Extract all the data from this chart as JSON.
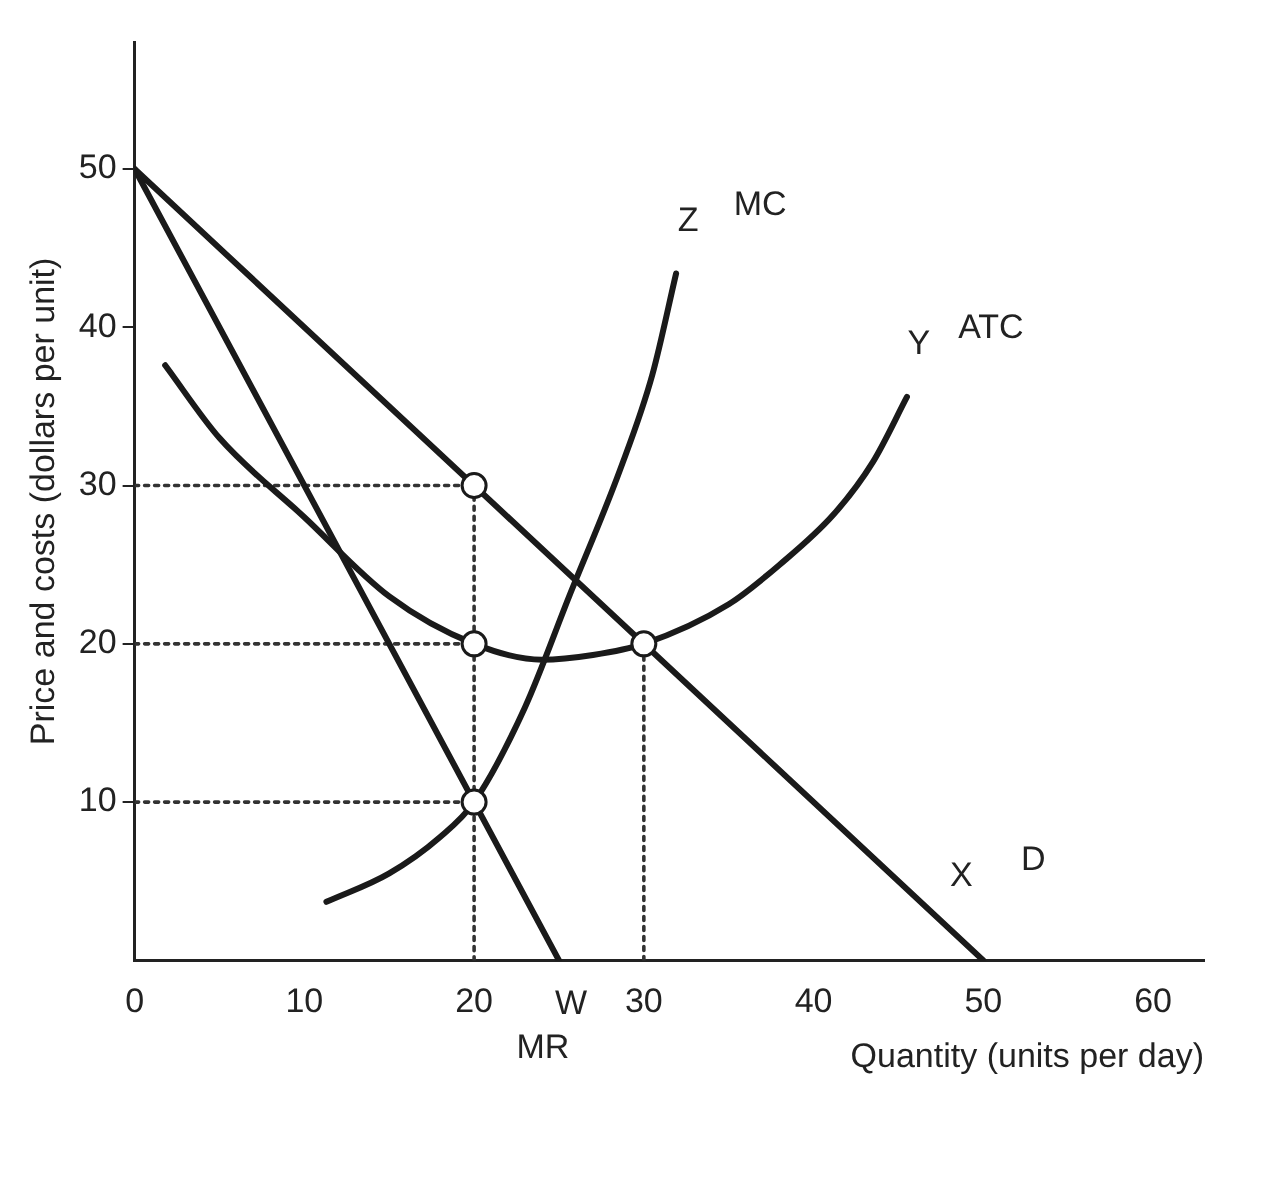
{
  "chart_data": {
    "type": "line",
    "xlabel": "Quantity (units per day)",
    "ylabel": "Price and costs (dollars per unit)",
    "xlim": [
      0,
      63
    ],
    "ylim": [
      0,
      58
    ],
    "xticks": [
      0,
      10,
      20,
      30,
      40,
      50,
      60
    ],
    "yticks": [
      10,
      20,
      30,
      40,
      50
    ],
    "grid": false,
    "legend": false,
    "marker": "none",
    "line_style": "solid",
    "series": [
      {
        "color": "#1a1a1a",
        "x": [
          0,
          50
        ],
        "values": [
          50,
          0
        ]
      },
      {
        "color": "#1a1a1a",
        "x": [
          0,
          25
        ],
        "values": [
          50,
          0
        ]
      },
      {
        "color": "#1a1a1a",
        "x": [
          11.3,
          15,
          18,
          20,
          23,
          25.6,
          28.6,
          30.5,
          31.9
        ],
        "values": [
          3.7,
          5.5,
          7.8,
          10,
          16,
          23,
          31,
          37,
          43.4
        ]
      },
      {
        "color": "#1a1a1a",
        "x": [
          1.8,
          5,
          10,
          15,
          20,
          24,
          27,
          30,
          35,
          38,
          41.2,
          43.5,
          45.5
        ],
        "values": [
          37.6,
          33,
          28,
          23,
          20,
          19,
          19.3,
          20,
          22.5,
          25,
          28.2,
          31.5,
          35.6
        ]
      },
      {
        "line_style": "dotted",
        "color": "#333333",
        "x": [
          0,
          20
        ],
        "values": [
          30,
          30
        ]
      },
      {
        "line_style": "dotted",
        "color": "#333333",
        "x": [
          0,
          20
        ],
        "values": [
          20,
          20
        ]
      },
      {
        "line_style": "dotted",
        "color": "#333333",
        "x": [
          0,
          20
        ],
        "values": [
          10,
          10
        ]
      },
      {
        "line_style": "dotted",
        "color": "#333333",
        "x": [
          20,
          20
        ],
        "values": [
          0,
          30
        ]
      },
      {
        "line_style": "dotted",
        "color": "#333333",
        "x": [
          30,
          30
        ],
        "values": [
          0,
          20
        ]
      },
      {
        "type": "scatter",
        "marker": "circle",
        "color": "#1a1a1a",
        "x": [
          20,
          20,
          30,
          20
        ],
        "values": [
          30,
          20,
          20,
          10
        ]
      }
    ],
    "annotations": [
      {
        "text": "Z",
        "x": 31.9,
        "y": 43.4
      },
      {
        "text": "Y",
        "x": 45.5,
        "y": 35.6
      },
      {
        "text": "X",
        "x": 48,
        "y": 2
      },
      {
        "text": "W",
        "x": 25,
        "y": 0
      },
      {
        "text": "MC",
        "x": 31.9,
        "y": 43.4
      },
      {
        "text": "ATC",
        "x": 45.5,
        "y": 35.6
      },
      {
        "text": "D",
        "x": 48,
        "y": 2
      },
      {
        "text": "MR",
        "x": 25,
        "y": 0
      }
    ]
  }
}
